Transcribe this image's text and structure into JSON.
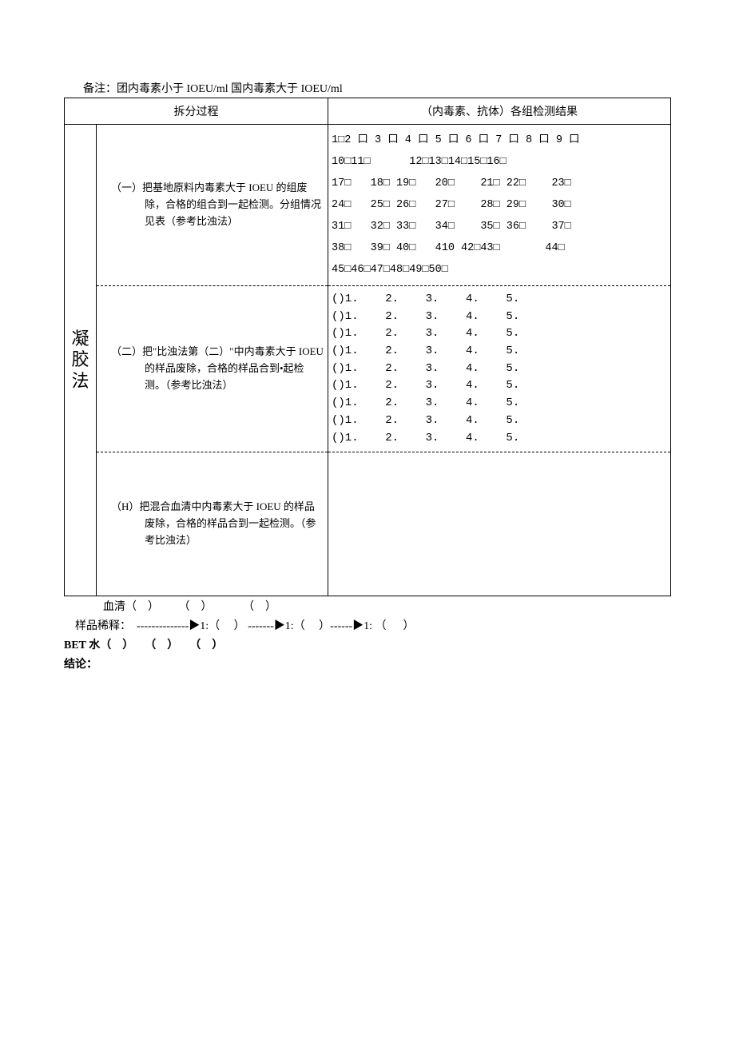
{
  "note": "备注：团内毒素小于 IOEU/ml 国内毒素大于 IOEU/ml",
  "headers": {
    "process": "拆分过程",
    "results": "（内毒素、抗体）各组检测结果"
  },
  "method_label": "凝胶法",
  "sections": {
    "one": {
      "process": "（一）把基地原料内毒素大于 IOEU 的组废除，合格的组合到一起检测。分组情况见表（参考比浊法）",
      "results_line1": "1□2 口 3 口 4 口 5 口 6 口 7 口 8 口 9 口",
      "results_line2": "10□11□      12□13□14□15□16□",
      "results_line3": "17□   18□ 19□   20□    21□ 22□    23□",
      "results_line4": "24□   25□ 26□   27□    28□ 29□    30□",
      "results_line5": "31□   32□ 33□   34□    35□ 36□    37□",
      "results_line6": "38□   39□ 40□   410 42□43□       44□",
      "results_line7": "45□46□47□48□49□50□"
    },
    "two": {
      "process": "（二）把\"比浊法第（二）\"中内毒素大于 IOEU 的样品废除，合格的样品合到•起检测。（参考比浊法）",
      "row": "()1.    2.    3.    4.    5."
    },
    "three": {
      "process": "（H）把混合血清中内毒素大于 IOEU 的样品废除，合格的样品合到一起检测。（参考比浊法）"
    }
  },
  "footer": {
    "line1": "              血清（    ）       （    ）           （    ）",
    "line2_label": "    样品稀释：  ",
    "line2_seg1": "--------------▶1:（     ） -------▶1:（     ）------▶1: （      ）",
    "line3": "BET 水（    ）    （    ）    （    ）",
    "line4": "结论："
  }
}
